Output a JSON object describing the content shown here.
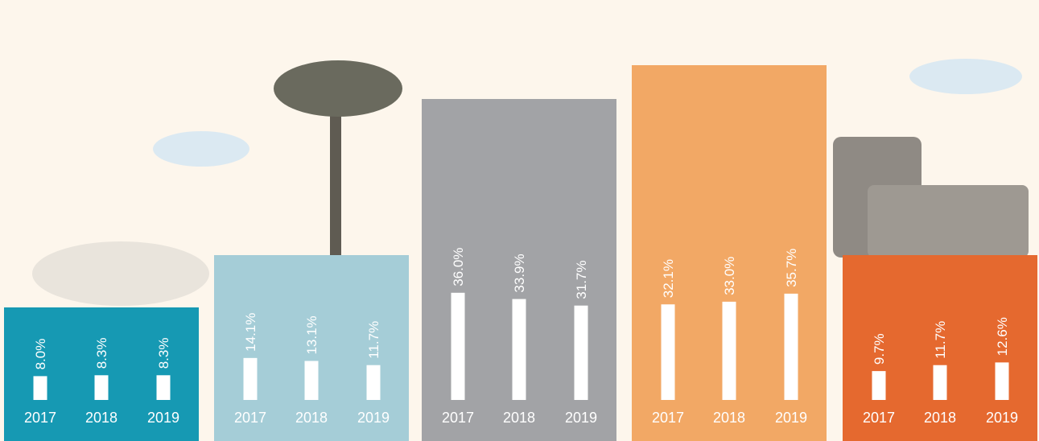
{
  "chart_data": [
    {
      "type": "bar",
      "categories": [
        "2017",
        "2018",
        "2019"
      ],
      "values": [
        8.0,
        8.3,
        8.3
      ],
      "value_labels": [
        "8.0%",
        "8.3%",
        "8.3%"
      ],
      "color": "#ffffff",
      "background": "#1699b3"
    },
    {
      "type": "bar",
      "categories": [
        "2017",
        "2018",
        "2019"
      ],
      "values": [
        14.1,
        13.1,
        11.7
      ],
      "value_labels": [
        "14.1%",
        "13.1%",
        "11.7%"
      ],
      "color": "#ffffff",
      "background": "#a5cdd7"
    },
    {
      "type": "bar",
      "categories": [
        "2017",
        "2018",
        "2019"
      ],
      "values": [
        36.0,
        33.9,
        31.7
      ],
      "value_labels": [
        "36.0%",
        "33.9%",
        "31.7%"
      ],
      "color": "#ffffff",
      "background": "#a2a3a6"
    },
    {
      "type": "bar",
      "categories": [
        "2017",
        "2018",
        "2019"
      ],
      "values": [
        32.1,
        33.0,
        35.7
      ],
      "value_labels": [
        "32.1%",
        "33.0%",
        "35.7%"
      ],
      "color": "#ffffff",
      "background": "#f2a865"
    },
    {
      "type": "bar",
      "categories": [
        "2017",
        "2018",
        "2019"
      ],
      "values": [
        9.7,
        11.7,
        12.6
      ],
      "value_labels": [
        "9.7%",
        "11.7%",
        "12.6%"
      ],
      "color": "#ffffff",
      "background": "#e5692f"
    }
  ]
}
